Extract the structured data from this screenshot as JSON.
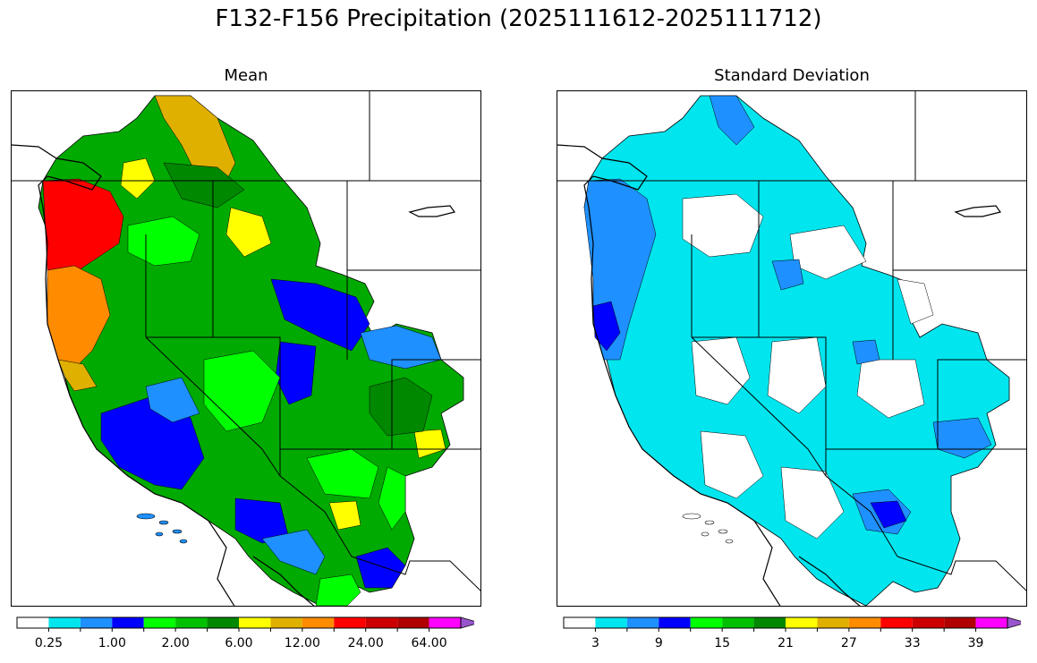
{
  "figure": {
    "title": "F132-F156 Precipitation (2025111612-2025111712)"
  },
  "panels": [
    {
      "subtitle": "Mean",
      "colorbar": {
        "colors": [
          "#ffffff",
          "#00e5ee",
          "#1e90ff",
          "#0000ff",
          "#00ff00",
          "#00c000",
          "#008800",
          "#ffff00",
          "#e0b000",
          "#ff8c00",
          "#ff0000",
          "#cc0000",
          "#b00000",
          "#ff00ff",
          "#9955cc"
        ],
        "tick_labels": [
          "0.25",
          "1.00",
          "2.00",
          "6.00",
          "12.00",
          "24.00",
          "64.00"
        ]
      },
      "map_fill": "#00aa00"
    },
    {
      "subtitle": "Standard Deviation",
      "colorbar": {
        "colors": [
          "#ffffff",
          "#00e5ee",
          "#1e90ff",
          "#0000ff",
          "#00ff00",
          "#00c000",
          "#008800",
          "#ffff00",
          "#e0b000",
          "#ff8c00",
          "#ff0000",
          "#cc0000",
          "#b00000",
          "#ff00ff",
          "#9955cc"
        ],
        "tick_labels": [
          "3",
          "9",
          "15",
          "21",
          "27",
          "33",
          "39"
        ]
      },
      "map_fill": "#00e5ee"
    }
  ]
}
